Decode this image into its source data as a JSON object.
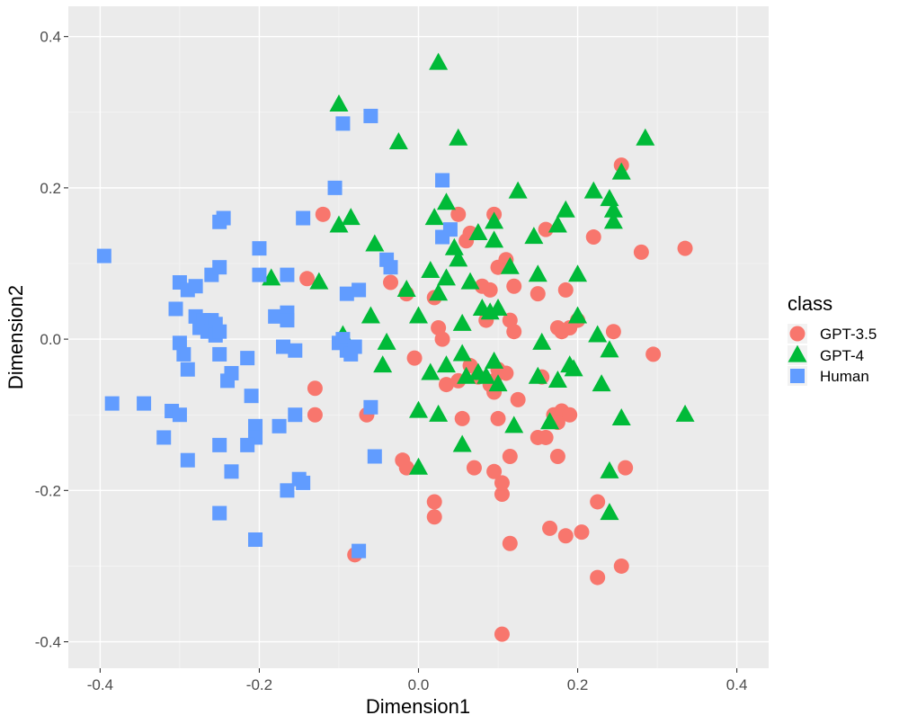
{
  "chart_data": {
    "type": "scatter",
    "title": "",
    "xlabel": "Dimension1",
    "ylabel": "Dimension2",
    "xlim": [
      -0.44,
      0.44
    ],
    "ylim": [
      -0.435,
      0.44
    ],
    "xticks": [
      -0.4,
      -0.2,
      0.0,
      0.2,
      0.4
    ],
    "xtick_labels": [
      "-0.4",
      "-0.2",
      "0.0",
      "0.2",
      "0.4"
    ],
    "yticks": [
      -0.4,
      -0.2,
      0.0,
      0.2,
      0.4
    ],
    "ytick_labels": [
      "-0.4",
      "-0.2",
      "0.0",
      "0.2",
      "0.4"
    ],
    "grid": true,
    "legend": {
      "title": "class",
      "position": "right"
    },
    "series": [
      {
        "name": "GPT-3.5",
        "shape": "circle",
        "color": "#F8766D",
        "points": [
          [
            -0.12,
            0.165
          ],
          [
            -0.14,
            0.08
          ],
          [
            -0.13,
            -0.065
          ],
          [
            -0.13,
            -0.1
          ],
          [
            -0.08,
            -0.285
          ],
          [
            -0.035,
            0.075
          ],
          [
            -0.015,
            0.06
          ],
          [
            -0.005,
            -0.025
          ],
          [
            -0.02,
            -0.16
          ],
          [
            -0.015,
            -0.17
          ],
          [
            0.02,
            0.055
          ],
          [
            0.025,
            0.015
          ],
          [
            0.03,
            0.0
          ],
          [
            0.02,
            -0.215
          ],
          [
            0.02,
            -0.235
          ],
          [
            0.05,
            0.165
          ],
          [
            0.06,
            0.13
          ],
          [
            0.065,
            0.14
          ],
          [
            0.055,
            -0.105
          ],
          [
            0.05,
            -0.055
          ],
          [
            0.08,
            0.07
          ],
          [
            0.085,
            0.025
          ],
          [
            0.09,
            0.065
          ],
          [
            0.095,
            -0.055
          ],
          [
            0.09,
            -0.06
          ],
          [
            0.1,
            0.095
          ],
          [
            0.11,
            0.105
          ],
          [
            0.095,
            0.165
          ],
          [
            0.115,
            0.025
          ],
          [
            0.12,
            0.07
          ],
          [
            0.1,
            -0.04
          ],
          [
            0.11,
            -0.045
          ],
          [
            0.12,
            0.01
          ],
          [
            0.125,
            -0.08
          ],
          [
            0.095,
            -0.07
          ],
          [
            0.1,
            -0.105
          ],
          [
            0.115,
            -0.155
          ],
          [
            0.095,
            -0.175
          ],
          [
            0.105,
            -0.19
          ],
          [
            0.105,
            -0.205
          ],
          [
            0.075,
            -0.05
          ],
          [
            0.07,
            -0.17
          ],
          [
            0.115,
            -0.27
          ],
          [
            0.105,
            -0.39
          ],
          [
            0.16,
            0.145
          ],
          [
            0.15,
            0.06
          ],
          [
            0.155,
            -0.05
          ],
          [
            0.15,
            -0.13
          ],
          [
            0.16,
            -0.13
          ],
          [
            0.165,
            -0.25
          ],
          [
            0.175,
            0.015
          ],
          [
            0.18,
            0.01
          ],
          [
            0.185,
            0.065
          ],
          [
            0.19,
            0.015
          ],
          [
            0.17,
            -0.1
          ],
          [
            0.175,
            -0.11
          ],
          [
            0.18,
            -0.095
          ],
          [
            0.19,
            -0.1
          ],
          [
            0.175,
            -0.155
          ],
          [
            0.185,
            -0.26
          ],
          [
            0.2,
            0.025
          ],
          [
            0.205,
            -0.255
          ],
          [
            0.22,
            0.135
          ],
          [
            0.225,
            -0.215
          ],
          [
            0.225,
            -0.315
          ],
          [
            0.245,
            0.01
          ],
          [
            0.255,
            -0.3
          ],
          [
            0.26,
            -0.17
          ],
          [
            0.255,
            0.23
          ],
          [
            0.28,
            0.115
          ],
          [
            0.295,
            -0.02
          ],
          [
            0.335,
            0.12
          ],
          [
            -0.065,
            -0.1
          ],
          [
            0.035,
            -0.06
          ],
          [
            0.065,
            -0.035
          ]
        ]
      },
      {
        "name": "GPT-4",
        "shape": "triangle",
        "color": "#00BA38",
        "points": [
          [
            -0.1,
            0.31
          ],
          [
            -0.025,
            0.26
          ],
          [
            0.025,
            0.365
          ],
          [
            0.05,
            0.265
          ],
          [
            0.285,
            0.265
          ],
          [
            -0.085,
            0.16
          ],
          [
            -0.1,
            0.15
          ],
          [
            -0.055,
            0.125
          ],
          [
            0.02,
            0.16
          ],
          [
            0.035,
            0.18
          ],
          [
            0.045,
            0.12
          ],
          [
            0.05,
            0.105
          ],
          [
            0.065,
            0.075
          ],
          [
            0.075,
            0.14
          ],
          [
            0.095,
            0.155
          ],
          [
            0.095,
            0.13
          ],
          [
            0.125,
            0.195
          ],
          [
            0.115,
            0.095
          ],
          [
            0.145,
            0.135
          ],
          [
            0.175,
            0.15
          ],
          [
            0.185,
            0.17
          ],
          [
            0.2,
            0.085
          ],
          [
            0.22,
            0.195
          ],
          [
            0.24,
            0.185
          ],
          [
            0.245,
            0.17
          ],
          [
            0.245,
            0.155
          ],
          [
            0.255,
            0.22
          ],
          [
            -0.185,
            0.08
          ],
          [
            -0.125,
            0.075
          ],
          [
            -0.095,
            0.005
          ],
          [
            -0.06,
            0.03
          ],
          [
            -0.015,
            0.065
          ],
          [
            0.0,
            0.03
          ],
          [
            0.015,
            0.09
          ],
          [
            0.025,
            0.06
          ],
          [
            0.035,
            0.08
          ],
          [
            0.055,
            0.02
          ],
          [
            0.08,
            0.04
          ],
          [
            0.09,
            0.035
          ],
          [
            0.1,
            0.04
          ],
          [
            0.15,
            0.085
          ],
          [
            0.155,
            -0.005
          ],
          [
            0.2,
            0.03
          ],
          [
            0.225,
            0.005
          ],
          [
            0.24,
            -0.015
          ],
          [
            -0.04,
            -0.005
          ],
          [
            -0.045,
            -0.035
          ],
          [
            0.015,
            -0.045
          ],
          [
            0.035,
            -0.035
          ],
          [
            0.055,
            -0.02
          ],
          [
            0.06,
            -0.05
          ],
          [
            0.075,
            -0.045
          ],
          [
            0.085,
            -0.05
          ],
          [
            0.095,
            -0.03
          ],
          [
            0.1,
            -0.06
          ],
          [
            0.15,
            -0.05
          ],
          [
            0.175,
            -0.055
          ],
          [
            0.19,
            -0.035
          ],
          [
            0.195,
            -0.04
          ],
          [
            0.23,
            -0.06
          ],
          [
            0.0,
            -0.095
          ],
          [
            0.025,
            -0.1
          ],
          [
            0.055,
            -0.14
          ],
          [
            0.12,
            -0.115
          ],
          [
            0.165,
            -0.11
          ],
          [
            0.0,
            -0.17
          ],
          [
            0.24,
            -0.175
          ],
          [
            0.24,
            -0.23
          ],
          [
            0.255,
            -0.105
          ],
          [
            0.335,
            -0.1
          ]
        ]
      },
      {
        "name": "Human",
        "shape": "square",
        "color": "#619CFF",
        "points": [
          [
            -0.095,
            0.285
          ],
          [
            -0.06,
            0.295
          ],
          [
            0.03,
            0.21
          ],
          [
            -0.105,
            0.2
          ],
          [
            -0.245,
            0.16
          ],
          [
            -0.25,
            0.155
          ],
          [
            -0.145,
            0.16
          ],
          [
            -0.2,
            0.12
          ],
          [
            -0.04,
            0.105
          ],
          [
            -0.035,
            0.095
          ],
          [
            0.03,
            0.135
          ],
          [
            0.04,
            0.145
          ],
          [
            -0.395,
            0.11
          ],
          [
            -0.3,
            0.075
          ],
          [
            -0.29,
            0.065
          ],
          [
            -0.28,
            0.07
          ],
          [
            -0.26,
            0.085
          ],
          [
            -0.25,
            0.095
          ],
          [
            -0.2,
            0.085
          ],
          [
            -0.18,
            0.03
          ],
          [
            -0.165,
            0.085
          ],
          [
            -0.09,
            0.06
          ],
          [
            -0.075,
            0.065
          ],
          [
            -0.305,
            0.04
          ],
          [
            -0.28,
            0.03
          ],
          [
            -0.275,
            0.015
          ],
          [
            -0.27,
            0.025
          ],
          [
            -0.26,
            0.025
          ],
          [
            -0.255,
            0.02
          ],
          [
            -0.265,
            0.01
          ],
          [
            -0.255,
            0.005
          ],
          [
            -0.25,
            0.01
          ],
          [
            -0.165,
            0.035
          ],
          [
            -0.165,
            0.025
          ],
          [
            -0.3,
            -0.005
          ],
          [
            -0.295,
            -0.02
          ],
          [
            -0.29,
            -0.04
          ],
          [
            -0.25,
            -0.02
          ],
          [
            -0.24,
            -0.055
          ],
          [
            -0.235,
            -0.045
          ],
          [
            -0.215,
            -0.025
          ],
          [
            -0.17,
            -0.01
          ],
          [
            -0.155,
            -0.015
          ],
          [
            -0.1,
            -0.005
          ],
          [
            -0.095,
            0.0
          ],
          [
            -0.09,
            -0.015
          ],
          [
            -0.085,
            -0.02
          ],
          [
            -0.08,
            -0.01
          ],
          [
            -0.385,
            -0.085
          ],
          [
            -0.345,
            -0.085
          ],
          [
            -0.31,
            -0.095
          ],
          [
            -0.3,
            -0.1
          ],
          [
            -0.32,
            -0.13
          ],
          [
            -0.21,
            -0.075
          ],
          [
            -0.205,
            -0.115
          ],
          [
            -0.205,
            -0.13
          ],
          [
            -0.215,
            -0.14
          ],
          [
            -0.175,
            -0.115
          ],
          [
            -0.155,
            -0.1
          ],
          [
            -0.06,
            -0.09
          ],
          [
            -0.29,
            -0.16
          ],
          [
            -0.25,
            -0.14
          ],
          [
            -0.235,
            -0.175
          ],
          [
            -0.15,
            -0.185
          ],
          [
            -0.145,
            -0.19
          ],
          [
            -0.165,
            -0.2
          ],
          [
            -0.055,
            -0.155
          ],
          [
            -0.25,
            -0.23
          ],
          [
            -0.205,
            -0.265
          ],
          [
            -0.075,
            -0.28
          ]
        ]
      }
    ]
  }
}
